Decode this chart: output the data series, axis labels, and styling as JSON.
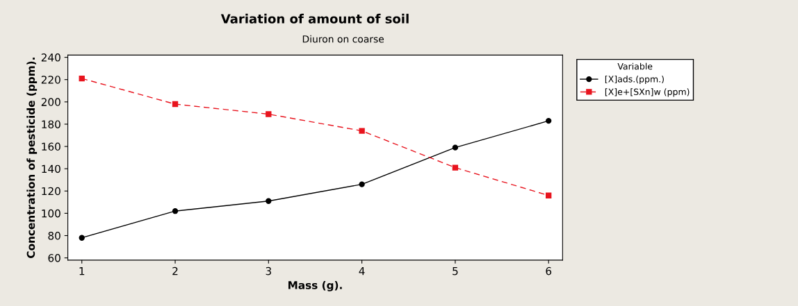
{
  "chart_data": {
    "type": "line",
    "title": "Variation of amount of soil",
    "subtitle": "Diuron on coarse",
    "xlabel": "Mass (g).",
    "ylabel": "Concentration of pesticide (ppm).",
    "legend_title": "Variable",
    "x": [
      1,
      2,
      3,
      4,
      5,
      6
    ],
    "series": [
      {
        "name": "[X]ads.(ppm.)",
        "color": "#000000",
        "marker": "circle",
        "line_style": "solid",
        "values": [
          78,
          102,
          111,
          126,
          159,
          183
        ]
      },
      {
        "name": "[X]e+[SXn]w (ppm)",
        "color": "#e8141e",
        "marker": "square",
        "line_style": "dashed",
        "values": [
          221,
          198,
          189,
          174,
          141,
          116
        ]
      }
    ],
    "xlim": [
      0.85,
      6.15
    ],
    "xticks": [
      1,
      2,
      3,
      4,
      5,
      6
    ],
    "ylim": [
      58,
      242
    ],
    "yticks": [
      60,
      80,
      100,
      120,
      140,
      160,
      180,
      200,
      220,
      240
    ],
    "grid": false,
    "legend": "top right"
  }
}
